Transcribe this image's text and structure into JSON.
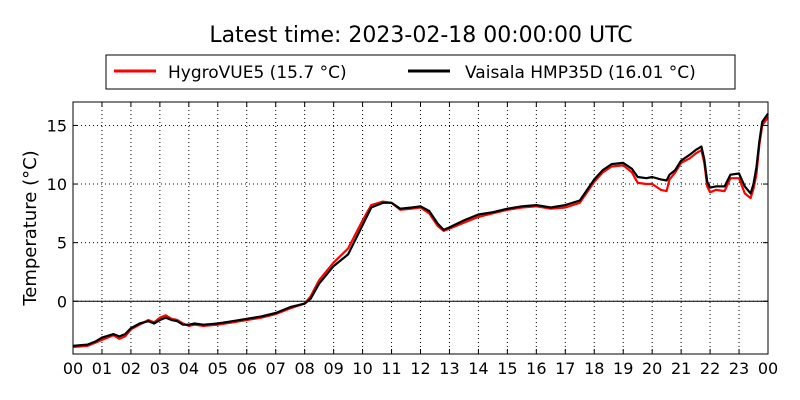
{
  "chart_data": {
    "type": "line",
    "title": "Latest time: 2023-02-18 00:00:00 UTC",
    "xlabel": "",
    "ylabel": "Temperature (°C)",
    "xlim": [
      0,
      24
    ],
    "ylim": [
      -4.5,
      17
    ],
    "x_ticks": [
      0,
      1,
      2,
      3,
      4,
      5,
      6,
      7,
      8,
      9,
      10,
      11,
      12,
      13,
      14,
      15,
      16,
      17,
      18,
      19,
      20,
      21,
      22,
      23,
      24
    ],
    "x_tick_labels": [
      "00",
      "01",
      "02",
      "03",
      "04",
      "05",
      "06",
      "07",
      "08",
      "09",
      "10",
      "11",
      "12",
      "13",
      "14",
      "15",
      "16",
      "17",
      "18",
      "19",
      "20",
      "21",
      "22",
      "23",
      "00"
    ],
    "y_ticks": [
      0,
      5,
      10,
      15
    ],
    "y_tick_labels": [
      "0",
      "5",
      "10",
      "15"
    ],
    "grid": true,
    "zero_line": true,
    "legend_position": "top-center",
    "series": [
      {
        "name": "HygroVUE5 (15.7 °C)",
        "color": "#ff0000",
        "x": [
          0,
          0.5,
          0.8,
          1.0,
          1.4,
          1.6,
          1.8,
          2.0,
          2.3,
          2.6,
          2.8,
          3.0,
          3.2,
          3.4,
          3.6,
          3.8,
          4.0,
          4.2,
          4.5,
          5.0,
          5.5,
          6.0,
          6.5,
          7.0,
          7.5,
          8.0,
          8.2,
          8.5,
          9.0,
          9.5,
          10.0,
          10.3,
          10.7,
          11.0,
          11.3,
          11.7,
          12.0,
          12.3,
          12.6,
          12.8,
          13.0,
          13.5,
          14.0,
          14.5,
          15.0,
          15.5,
          16.0,
          16.5,
          17.0,
          17.5,
          18.0,
          18.3,
          18.6,
          19.0,
          19.3,
          19.5,
          19.8,
          20.0,
          20.3,
          20.5,
          20.6,
          20.8,
          21.0,
          21.3,
          21.5,
          21.7,
          21.8,
          21.9,
          22.0,
          22.2,
          22.5,
          22.7,
          23.0,
          23.2,
          23.4,
          23.5,
          23.6,
          23.7,
          23.8,
          24.0
        ],
        "values": [
          -3.9,
          -3.8,
          -3.5,
          -3.3,
          -2.9,
          -3.2,
          -3.0,
          -2.4,
          -2.0,
          -1.6,
          -1.8,
          -1.4,
          -1.2,
          -1.5,
          -1.6,
          -1.9,
          -2.1,
          -2.0,
          -2.1,
          -2.0,
          -1.8,
          -1.6,
          -1.4,
          -1.1,
          -0.6,
          -0.2,
          0.4,
          1.8,
          3.3,
          4.5,
          6.9,
          8.2,
          8.5,
          8.4,
          7.8,
          7.9,
          8.0,
          7.5,
          6.4,
          6.0,
          6.2,
          6.7,
          7.2,
          7.5,
          7.8,
          8.0,
          8.1,
          7.9,
          8.0,
          8.4,
          10.2,
          11.0,
          11.5,
          11.6,
          11.0,
          10.1,
          10.0,
          10.0,
          9.5,
          9.4,
          10.4,
          11.0,
          11.8,
          12.2,
          12.6,
          12.9,
          11.8,
          9.8,
          9.3,
          9.5,
          9.4,
          10.5,
          10.5,
          9.2,
          8.8,
          9.6,
          10.8,
          13.3,
          15.0,
          15.7
        ]
      },
      {
        "name": "Vaisala HMP35D (16.01 °C)",
        "color": "#000000",
        "x": [
          0,
          0.5,
          0.8,
          1.0,
          1.4,
          1.6,
          1.8,
          2.0,
          2.3,
          2.6,
          2.8,
          3.0,
          3.2,
          3.4,
          3.6,
          3.8,
          4.0,
          4.2,
          4.5,
          5.0,
          5.5,
          6.0,
          6.5,
          7.0,
          7.5,
          8.0,
          8.2,
          8.5,
          9.0,
          9.5,
          10.0,
          10.3,
          10.7,
          11.0,
          11.3,
          11.7,
          12.0,
          12.3,
          12.6,
          12.8,
          13.0,
          13.5,
          14.0,
          14.5,
          15.0,
          15.5,
          16.0,
          16.5,
          17.0,
          17.5,
          18.0,
          18.3,
          18.6,
          19.0,
          19.3,
          19.5,
          19.8,
          20.0,
          20.3,
          20.5,
          20.6,
          20.8,
          21.0,
          21.3,
          21.5,
          21.7,
          21.8,
          21.9,
          22.0,
          22.2,
          22.5,
          22.7,
          23.0,
          23.2,
          23.4,
          23.5,
          23.6,
          23.7,
          23.8,
          24.0
        ],
        "values": [
          -3.8,
          -3.7,
          -3.4,
          -3.1,
          -2.8,
          -3.0,
          -2.8,
          -2.3,
          -1.9,
          -1.7,
          -1.9,
          -1.6,
          -1.4,
          -1.6,
          -1.7,
          -2.0,
          -2.0,
          -1.9,
          -2.0,
          -1.9,
          -1.7,
          -1.5,
          -1.3,
          -1.0,
          -0.5,
          -0.2,
          0.2,
          1.5,
          3.0,
          4.0,
          6.5,
          8.0,
          8.4,
          8.4,
          7.9,
          8.0,
          8.1,
          7.7,
          6.6,
          6.1,
          6.3,
          6.9,
          7.4,
          7.6,
          7.9,
          8.1,
          8.2,
          8.0,
          8.2,
          8.6,
          10.4,
          11.2,
          11.7,
          11.8,
          11.3,
          10.6,
          10.5,
          10.6,
          10.4,
          10.3,
          10.8,
          11.2,
          12.0,
          12.5,
          12.9,
          13.2,
          12.1,
          10.2,
          9.7,
          9.8,
          9.8,
          10.8,
          10.9,
          9.8,
          9.2,
          10.0,
          11.4,
          13.6,
          15.3,
          16.01
        ]
      }
    ]
  }
}
